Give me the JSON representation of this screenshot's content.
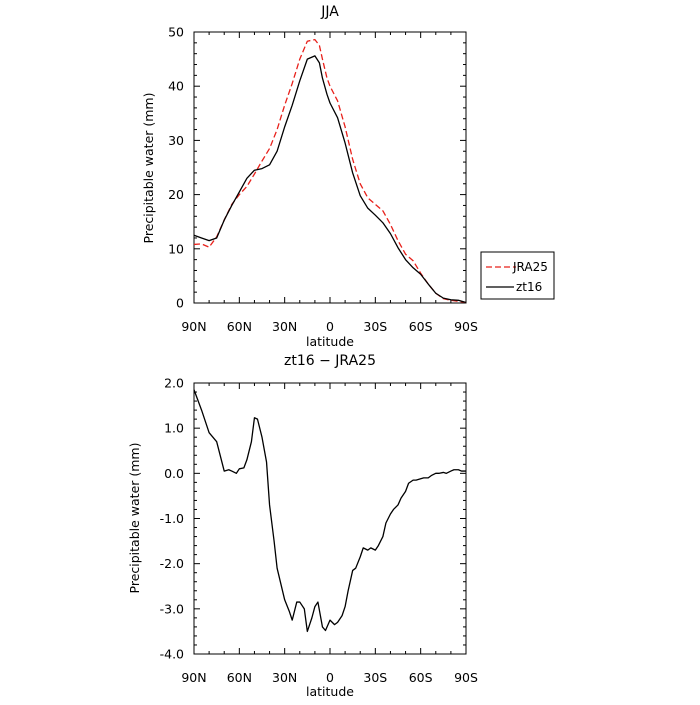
{
  "chart_data": [
    {
      "type": "line",
      "title": "JJA",
      "xlabel": "latitude",
      "ylabel": "Precipitable water (mm)",
      "xlim": [
        90,
        -90
      ],
      "ylim": [
        0,
        50
      ],
      "x_tick_values": [
        90,
        60,
        30,
        0,
        -30,
        -60,
        -90
      ],
      "x_tick_labels": [
        "90N",
        "60N",
        "30N",
        "0",
        "30S",
        "60S",
        "90S"
      ],
      "y_tick_values": [
        0,
        10,
        20,
        30,
        40,
        50
      ],
      "y_tick_labels": [
        "0",
        "10",
        "20",
        "30",
        "40",
        "50"
      ],
      "grid": false,
      "legend": "right",
      "series": [
        {
          "name": "JRA25",
          "color": "#e8211b",
          "dash": "dashed",
          "x": [
            90,
            85,
            80,
            75,
            70,
            65,
            60,
            55,
            50,
            45,
            40,
            35,
            30,
            25,
            20,
            15,
            10,
            7,
            5,
            2,
            0,
            -5,
            -10,
            -15,
            -20,
            -25,
            -30,
            -35,
            -40,
            -45,
            -50,
            -55,
            -60,
            -65,
            -70,
            -75,
            -80,
            -85,
            -90
          ],
          "y": [
            10.8,
            10.9,
            10.3,
            12.2,
            15.3,
            18.2,
            20.0,
            21.5,
            23.8,
            26.2,
            28.5,
            32.0,
            36.5,
            40.5,
            45.0,
            48.3,
            48.6,
            47.5,
            45.0,
            41.5,
            40.0,
            37.3,
            32.5,
            26.5,
            22.0,
            19.4,
            18.2,
            17.0,
            14.5,
            11.5,
            9.0,
            7.8,
            5.5,
            3.5,
            1.8,
            0.8,
            0.5,
            0.3,
            0.1
          ]
        },
        {
          "name": "zt16",
          "color": "#000000",
          "dash": "solid",
          "x": [
            90,
            85,
            80,
            75,
            70,
            65,
            60,
            55,
            50,
            45,
            40,
            35,
            30,
            25,
            20,
            15,
            10,
            7,
            5,
            2,
            0,
            -5,
            -10,
            -15,
            -20,
            -25,
            -30,
            -35,
            -40,
            -45,
            -50,
            -55,
            -60,
            -65,
            -70,
            -75,
            -80,
            -85,
            -90
          ],
          "y": [
            12.5,
            12.0,
            11.5,
            12.0,
            15.3,
            18.0,
            20.5,
            23.0,
            24.5,
            24.8,
            25.5,
            28.0,
            32.5,
            36.5,
            41.0,
            45.0,
            45.6,
            44.3,
            41.5,
            38.5,
            36.9,
            34.2,
            29.5,
            24.0,
            19.8,
            17.5,
            16.2,
            14.8,
            12.8,
            10.2,
            8.0,
            6.5,
            5.3,
            3.5,
            1.8,
            0.9,
            0.6,
            0.5,
            0.1
          ]
        }
      ]
    },
    {
      "type": "line",
      "title": "zt16 − JRA25",
      "xlabel": "latitude",
      "ylabel": "Precipitable water (mm)",
      "xlim": [
        90,
        -90
      ],
      "ylim": [
        -4,
        2
      ],
      "x_tick_values": [
        90,
        60,
        30,
        0,
        -30,
        -60,
        -90
      ],
      "x_tick_labels": [
        "90N",
        "60N",
        "30N",
        "0",
        "30S",
        "60S",
        "90S"
      ],
      "y_tick_values": [
        2,
        1,
        0,
        -1,
        -2,
        -3,
        -4
      ],
      "y_tick_labels": [
        "2.0",
        "1.0",
        "0.0",
        "-1.0",
        "-2.0",
        "-3.0",
        "-4.0"
      ],
      "grid": false,
      "series": [
        {
          "color": "#000000",
          "dash": "solid",
          "x": [
            90,
            85,
            80,
            75,
            70,
            67,
            65,
            62,
            60,
            57,
            55,
            52,
            50,
            48,
            45,
            42,
            40,
            37,
            35,
            30,
            27,
            25,
            22,
            20,
            17,
            15,
            12,
            10,
            8,
            5,
            3,
            0,
            -3,
            -5,
            -8,
            -10,
            -12,
            -15,
            -17,
            -20,
            -22,
            -25,
            -27,
            -30,
            -32,
            -35,
            -37,
            -40,
            -42,
            -45,
            -47,
            -50,
            -52,
            -55,
            -57,
            -60,
            -62,
            -65,
            -67,
            -70,
            -72,
            -75,
            -77,
            -80,
            -82,
            -85,
            -87,
            -90
          ],
          "y": [
            1.85,
            1.4,
            0.9,
            0.7,
            0.05,
            0.08,
            0.05,
            0.0,
            0.1,
            0.12,
            0.3,
            0.7,
            1.23,
            1.2,
            0.8,
            0.25,
            -0.7,
            -1.5,
            -2.1,
            -2.8,
            -3.05,
            -3.25,
            -2.85,
            -2.85,
            -3.0,
            -3.5,
            -3.2,
            -2.95,
            -2.85,
            -3.4,
            -3.48,
            -3.25,
            -3.35,
            -3.3,
            -3.15,
            -2.95,
            -2.6,
            -2.15,
            -2.1,
            -1.85,
            -1.65,
            -1.7,
            -1.65,
            -1.7,
            -1.6,
            -1.4,
            -1.1,
            -0.9,
            -0.8,
            -0.7,
            -0.55,
            -0.4,
            -0.22,
            -0.15,
            -0.15,
            -0.12,
            -0.1,
            -0.1,
            -0.05,
            0.0,
            0.0,
            0.02,
            0.0,
            0.05,
            0.08,
            0.08,
            0.05,
            0.05
          ]
        }
      ]
    }
  ]
}
